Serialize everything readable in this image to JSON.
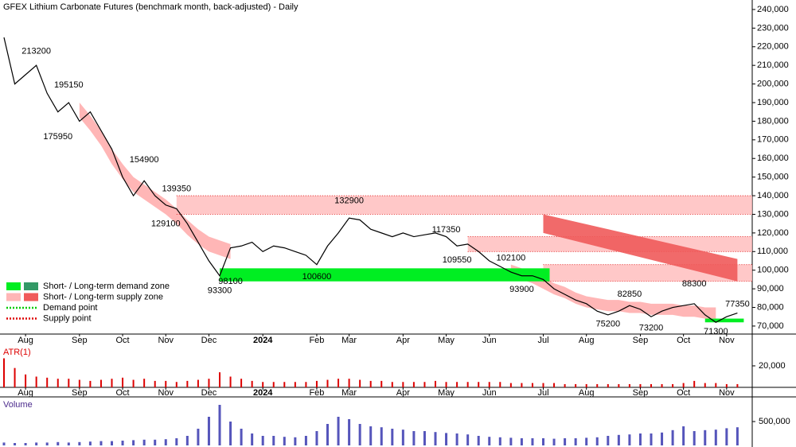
{
  "chart_data": {
    "type": "line",
    "title": "GFEX Lithium Carbonate Futures (benchmark month, back-adjusted) - Daily",
    "categories": [
      null,
      null,
      "Aug",
      null,
      null,
      null,
      null,
      "Sep",
      null,
      null,
      null,
      "Oct",
      null,
      null,
      null,
      "Nov",
      null,
      null,
      null,
      "Dec",
      null,
      null,
      null,
      null,
      "2024",
      null,
      null,
      null,
      null,
      "Feb",
      null,
      null,
      "Mar",
      null,
      null,
      null,
      null,
      "Apr",
      null,
      null,
      null,
      "May",
      null,
      null,
      null,
      "Jun",
      null,
      null,
      null,
      null,
      "Jul",
      null,
      null,
      null,
      "Aug",
      null,
      null,
      null,
      null,
      "Sep",
      null,
      null,
      null,
      "Oct",
      null,
      null,
      null,
      "Nov",
      null
    ],
    "series": [
      {
        "name": "Price",
        "color": "#000000",
        "values": [
          225000,
          200000,
          205000,
          210000,
          195000,
          185000,
          190000,
          180000,
          185000,
          175000,
          165000,
          150000,
          140000,
          148000,
          140000,
          135000,
          133000,
          125000,
          115000,
          105000,
          97000,
          112000,
          113000,
          115000,
          110000,
          113000,
          112000,
          110000,
          108000,
          103000,
          113000,
          120000,
          128000,
          127000,
          122000,
          120000,
          118000,
          120000,
          118000,
          119000,
          120000,
          118000,
          113000,
          114000,
          110000,
          105000,
          102000,
          99000,
          97000,
          97000,
          95000,
          90000,
          87000,
          84000,
          82000,
          78000,
          76000,
          78000,
          81000,
          79000,
          75000,
          78000,
          80000,
          81000,
          82000,
          76000,
          72000,
          75000,
          77000
        ]
      }
    ],
    "ylim": [
      65700,
      245100
    ],
    "yticks": [
      {
        "value": 70000,
        "label": "70,000"
      },
      {
        "value": 80000,
        "label": "80,000"
      },
      {
        "value": 90000,
        "label": "90,000"
      },
      {
        "value": 100000,
        "label": "100,000"
      },
      {
        "value": 110000,
        "label": "110,000"
      },
      {
        "value": 120000,
        "label": "120,000"
      },
      {
        "value": 130000,
        "label": "130,000"
      },
      {
        "value": 140000,
        "label": "140,000"
      },
      {
        "value": 150000,
        "label": "150,000"
      },
      {
        "value": 160000,
        "label": "160,000"
      },
      {
        "value": 170000,
        "label": "170,000"
      },
      {
        "value": 180000,
        "label": "180,000"
      },
      {
        "value": 190000,
        "label": "190,000"
      },
      {
        "value": 200000,
        "label": "200,000"
      },
      {
        "value": 210000,
        "label": "210,000"
      },
      {
        "value": 220000,
        "label": "220,000"
      },
      {
        "value": 230000,
        "label": "230,000"
      },
      {
        "value": 240000,
        "label": "240,000"
      }
    ],
    "annotations": [
      {
        "value": 213200,
        "index": 3,
        "place": "above"
      },
      {
        "value": 195150,
        "index": 6,
        "place": "above"
      },
      {
        "value": 175950,
        "index": 5,
        "place": "below"
      },
      {
        "value": 154900,
        "index": 13,
        "place": "above"
      },
      {
        "value": 139350,
        "index": 16,
        "place": "above"
      },
      {
        "value": 129100,
        "index": 15,
        "place": "below"
      },
      {
        "value": 93300,
        "index": 20,
        "place": "below"
      },
      {
        "value": 98100,
        "index": 21,
        "place": "below"
      },
      {
        "value": 100600,
        "index": 29,
        "place": "below"
      },
      {
        "value": 132900,
        "index": 32,
        "place": "above"
      },
      {
        "value": 117350,
        "index": 41,
        "place": "above"
      },
      {
        "value": 109550,
        "index": 42,
        "place": "below"
      },
      {
        "value": 102100,
        "index": 47,
        "place": "above"
      },
      {
        "value": 93900,
        "index": 48,
        "place": "below"
      },
      {
        "value": 75200,
        "index": 56,
        "place": "below"
      },
      {
        "value": 82850,
        "index": 58,
        "place": "above"
      },
      {
        "value": 73200,
        "index": 60,
        "place": "below"
      },
      {
        "value": 88300,
        "index": 64,
        "place": "above"
      },
      {
        "value": 71300,
        "index": 66,
        "place": "below"
      },
      {
        "value": 77350,
        "index": 68,
        "place": "above"
      }
    ],
    "supply_zones": [
      {
        "low": 130000,
        "high": 140000,
        "start": 16,
        "color": "#ffb6b6"
      },
      {
        "low": 110000,
        "high": 118000,
        "start": 43,
        "color": "#ffb6b6"
      },
      {
        "low": 94000,
        "high": 103000,
        "start": 50,
        "color": "#ffb6b6"
      }
    ],
    "demand_zones": [
      {
        "low": 94000,
        "high": 101000,
        "start": 20,
        "end": 50,
        "color": "#00ee22"
      },
      {
        "low": 72000,
        "high": 74000,
        "start": 65,
        "end": 68,
        "color": "#00ee22"
      }
    ],
    "long_supply_zone": {
      "start": 50,
      "end": 68,
      "start_low": 120000,
      "start_high": 130000,
      "end_low": 94000,
      "end_high": 106000,
      "color": "#f05a5a"
    },
    "trails": [
      {
        "start": 7,
        "color": "#ffb6b6",
        "high": [
          190000,
          183000,
          175000,
          165000,
          157000,
          150000,
          146000,
          142000,
          138000,
          133000,
          127000,
          122000,
          118000,
          116000,
          114000
        ],
        "low": [
          182000,
          175000,
          167000,
          157000,
          149000,
          142000,
          138000,
          134000,
          130000,
          125000,
          119000,
          114000,
          110000,
          108000,
          106000
        ]
      },
      {
        "start": 47,
        "color": "#ffb6b6",
        "high": [
          103000,
          101000,
          99000,
          96000,
          93000,
          91000,
          88000,
          86000,
          85000,
          84000,
          84000,
          83000,
          83000,
          82000,
          82000,
          82000,
          81000,
          81000,
          80000,
          80000
        ],
        "low": [
          97000,
          95000,
          93000,
          90000,
          87000,
          85000,
          82000,
          80000,
          79000,
          78000,
          78000,
          77000,
          77000,
          76000,
          76000,
          76000,
          75000,
          75000,
          74000,
          74000
        ]
      }
    ],
    "legend": [
      {
        "label": "Short- / Long-term demand zone",
        "colors": [
          "#00ee22",
          "#339966"
        ]
      },
      {
        "label": "Short- / Long-term supply zone",
        "colors": [
          "#ffb6b6",
          "#f05a5a"
        ]
      },
      {
        "label": "Demand point",
        "color": "#00cc00"
      },
      {
        "label": "Supply point",
        "color": "#dd0000"
      }
    ],
    "atr": {
      "title": "ATR(1)",
      "color": "#dd0000",
      "ylim": [
        0,
        37000
      ],
      "yticks": [
        {
          "value": 20000,
          "label": "20,000"
        }
      ],
      "values": [
        27000,
        18000,
        12000,
        10000,
        9000,
        8000,
        8000,
        7000,
        6000,
        7000,
        8000,
        9000,
        7000,
        8000,
        6000,
        6000,
        5000,
        6000,
        7000,
        8000,
        14000,
        10000,
        8000,
        6000,
        5000,
        5000,
        5000,
        5000,
        5000,
        6000,
        7000,
        8000,
        8000,
        7000,
        6000,
        6000,
        5000,
        5000,
        5000,
        5000,
        6000,
        5000,
        5000,
        5000,
        5000,
        5000,
        5000,
        4000,
        4000,
        4000,
        4000,
        4000,
        3000,
        3000,
        3000,
        3000,
        3000,
        3000,
        3000,
        3000,
        3000,
        3000,
        3000,
        4000,
        6000,
        4000,
        4000,
        3000,
        3000
      ]
    },
    "volume": {
      "title": "Volume",
      "color": "#5555bb",
      "ylim": [
        0,
        950000
      ],
      "yticks": [
        {
          "value": 500000,
          "label": "500,000"
        }
      ],
      "values": [
        60000,
        50000,
        50000,
        60000,
        60000,
        70000,
        60000,
        70000,
        80000,
        90000,
        90000,
        100000,
        110000,
        120000,
        120000,
        130000,
        150000,
        200000,
        350000,
        600000,
        850000,
        500000,
        350000,
        250000,
        200000,
        200000,
        180000,
        170000,
        200000,
        300000,
        450000,
        600000,
        550000,
        450000,
        400000,
        380000,
        350000,
        330000,
        300000,
        300000,
        280000,
        260000,
        250000,
        230000,
        200000,
        180000,
        170000,
        160000,
        150000,
        150000,
        150000,
        140000,
        150000,
        150000,
        160000,
        170000,
        200000,
        220000,
        230000,
        250000,
        250000,
        270000,
        320000,
        400000,
        300000,
        320000,
        330000,
        360000,
        380000
      ]
    }
  }
}
